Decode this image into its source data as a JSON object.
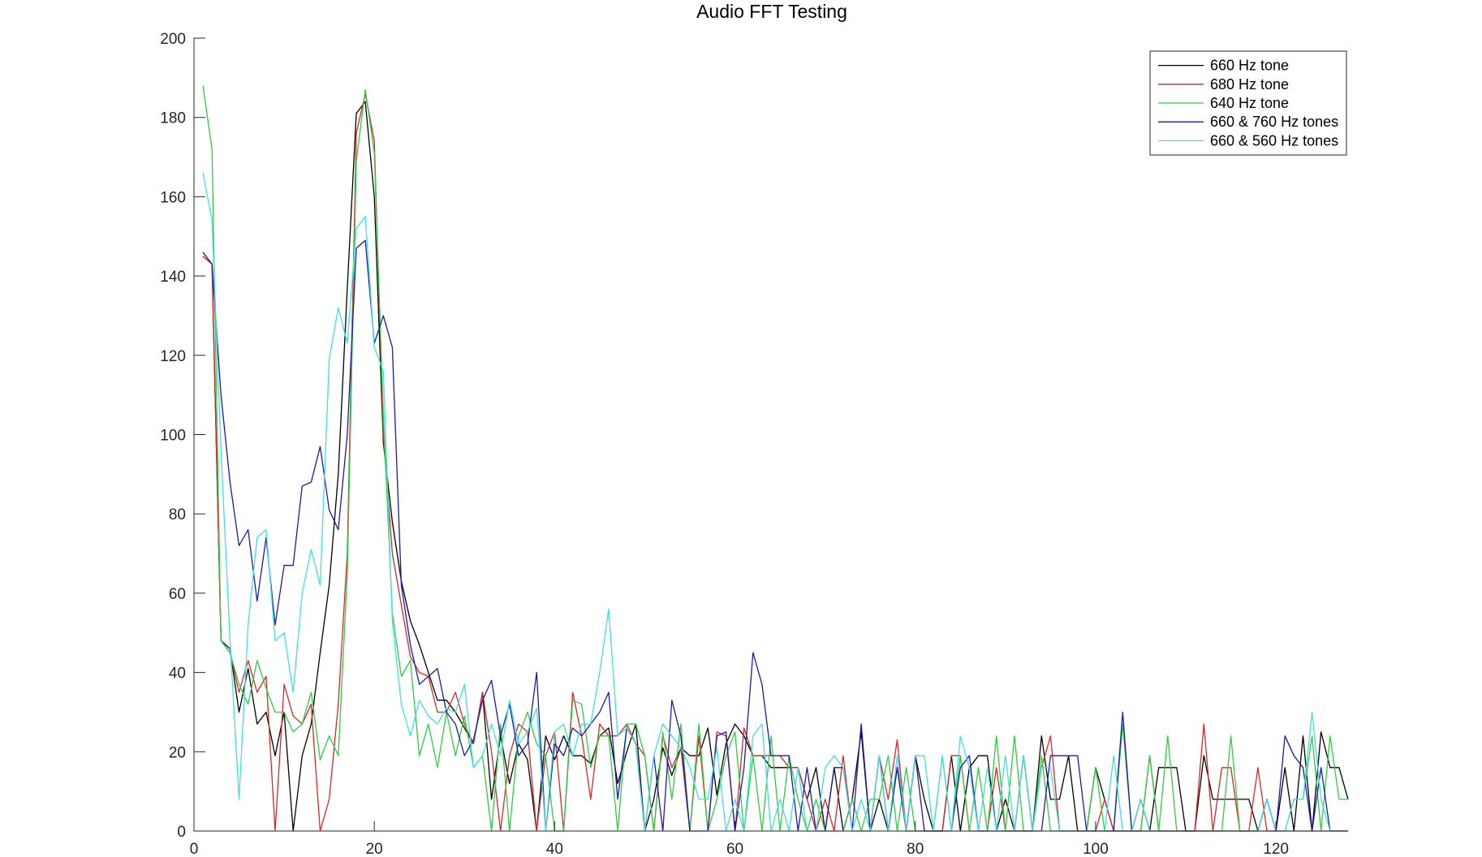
{
  "chart_data": {
    "type": "line",
    "title": "Audio FFT Testing",
    "xlabel": "",
    "ylabel": "",
    "xlim": [
      0,
      128
    ],
    "ylim": [
      0,
      200
    ],
    "xticks": [
      0,
      20,
      40,
      60,
      80,
      100,
      120
    ],
    "yticks": [
      0,
      20,
      40,
      60,
      80,
      100,
      120,
      140,
      160,
      180,
      200
    ],
    "grid": false,
    "legend_position": "top-right",
    "x": [
      1,
      2,
      3,
      4,
      5,
      6,
      7,
      8,
      9,
      10,
      11,
      12,
      13,
      14,
      15,
      16,
      17,
      18,
      19,
      20,
      21,
      22,
      23,
      24,
      25,
      26,
      27,
      28,
      29,
      30,
      31,
      32,
      33,
      34,
      35,
      36,
      37,
      38,
      39,
      40,
      41,
      42,
      43,
      44,
      45,
      46,
      47,
      48,
      49,
      50,
      51,
      52,
      53,
      54,
      55,
      56,
      57,
      58,
      59,
      60,
      61,
      62,
      63,
      64,
      65,
      66,
      67,
      68,
      69,
      70,
      71,
      72,
      73,
      74,
      75,
      76,
      77,
      78,
      79,
      80,
      81,
      82,
      83,
      84,
      85,
      86,
      87,
      88,
      89,
      90,
      91,
      92,
      93,
      94,
      95,
      96,
      97,
      98,
      99,
      100,
      101,
      102,
      103,
      104,
      105,
      106,
      107,
      108,
      109,
      110,
      111,
      112,
      113,
      114,
      115,
      116,
      117,
      118,
      119,
      120,
      121,
      122,
      123,
      124,
      125,
      126,
      127,
      128
    ],
    "series": [
      {
        "name": "660 Hz tone",
        "color": "#000000",
        "values": [
          145,
          143,
          48,
          46,
          30,
          41,
          27,
          30,
          19,
          30,
          0,
          19,
          27,
          45,
          62,
          90,
          137,
          181,
          184,
          160,
          98,
          78,
          63,
          53,
          47,
          40,
          33,
          33,
          30,
          26,
          22,
          35,
          8,
          24,
          12,
          22,
          18,
          0,
          24,
          18,
          24,
          19,
          19,
          17,
          24,
          26,
          12,
          20,
          27,
          0,
          8,
          21,
          14,
          21,
          19,
          19,
          26,
          9,
          22,
          27,
          24,
          19,
          19,
          16,
          16,
          16,
          16,
          8,
          16,
          0,
          16,
          0,
          8,
          25,
          0,
          8,
          0,
          16,
          0,
          19,
          8,
          0,
          0,
          19,
          0,
          16,
          19,
          19,
          0,
          8,
          0,
          19,
          0,
          24,
          8,
          8,
          19,
          0,
          0,
          16,
          8,
          0,
          0,
          0,
          8,
          0,
          16,
          16,
          16,
          0,
          0,
          19,
          8,
          8,
          8,
          8,
          8,
          0,
          8,
          0,
          16,
          0,
          24,
          0,
          25,
          16,
          16,
          8
        ]
      },
      {
        "name": "680 Hz tone",
        "color": "#d62728",
        "values": [
          145,
          143,
          48,
          45,
          35,
          43,
          35,
          39,
          0,
          37,
          29,
          27,
          32,
          0,
          8,
          32,
          70,
          176,
          186,
          174,
          100,
          70,
          57,
          44,
          40,
          39,
          30,
          30,
          35,
          27,
          22,
          35,
          20,
          0,
          19,
          27,
          25,
          0,
          19,
          25,
          0,
          35,
          24,
          8,
          27,
          24,
          24,
          27,
          22,
          19,
          0,
          24,
          16,
          21,
          0,
          24,
          0,
          25,
          24,
          0,
          26,
          19,
          19,
          19,
          19,
          16,
          16,
          8,
          0,
          8,
          0,
          19,
          0,
          0,
          0,
          19,
          8,
          23,
          0,
          0,
          0,
          0,
          0,
          19,
          19,
          0,
          0,
          0,
          16,
          0,
          0,
          0,
          0,
          16,
          24,
          0,
          0,
          0,
          0,
          0,
          8,
          0,
          0,
          0,
          0,
          19,
          0,
          0,
          0,
          0,
          0,
          27,
          0,
          16,
          16,
          0,
          0,
          16,
          0,
          0,
          0,
          0,
          0,
          0,
          0,
          0,
          0,
          0
        ]
      },
      {
        "name": "640 Hz tone",
        "color": "#2ecc40",
        "values": [
          188,
          172,
          48,
          45,
          37,
          32,
          43,
          36,
          30,
          30,
          25,
          27,
          35,
          18,
          24,
          19,
          65,
          169,
          187,
          171,
          105,
          55,
          39,
          43,
          19,
          27,
          16,
          30,
          19,
          29,
          16,
          19,
          0,
          27,
          0,
          24,
          30,
          22,
          19,
          0,
          0,
          33,
          32,
          16,
          24,
          24,
          0,
          27,
          27,
          19,
          0,
          25,
          8,
          27,
          0,
          27,
          0,
          8,
          19,
          25,
          0,
          19,
          0,
          24,
          0,
          19,
          8,
          0,
          8,
          0,
          0,
          0,
          8,
          0,
          8,
          8,
          19,
          0,
          16,
          0,
          0,
          0,
          19,
          0,
          19,
          0,
          16,
          0,
          24,
          0,
          24,
          0,
          0,
          19,
          0,
          0,
          0,
          0,
          0,
          16,
          0,
          0,
          27,
          0,
          0,
          19,
          0,
          24,
          0,
          0,
          0,
          0,
          0,
          0,
          24,
          0,
          0,
          0,
          0,
          0,
          0,
          8,
          8,
          24,
          0,
          24,
          8,
          8
        ]
      },
      {
        "name": "660 & 760 Hz tones",
        "color": "#1a1aa6",
        "values": [
          146,
          143,
          110,
          88,
          72,
          76,
          58,
          74,
          52,
          67,
          67,
          87,
          88,
          97,
          81,
          76,
          100,
          147,
          149,
          123,
          130,
          122,
          62,
          47,
          37,
          39,
          41,
          30,
          27,
          19,
          23,
          33,
          38,
          24,
          32,
          19,
          22,
          40,
          0,
          22,
          19,
          26,
          24,
          27,
          30,
          35,
          8,
          26,
          22,
          0,
          19,
          0,
          33,
          24,
          0,
          0,
          0,
          24,
          25,
          0,
          16,
          45,
          37,
          19,
          19,
          19,
          0,
          16,
          0,
          0,
          16,
          16,
          0,
          27,
          0,
          19,
          0,
          16,
          0,
          19,
          0,
          0,
          0,
          0,
          16,
          19,
          0,
          0,
          0,
          0,
          0,
          0,
          0,
          0,
          19,
          19,
          19,
          19,
          0,
          0,
          0,
          0,
          30,
          0,
          0,
          0,
          0,
          0,
          0,
          0,
          0,
          0,
          0,
          0,
          0,
          0,
          0,
          0,
          8,
          0,
          24,
          19,
          16,
          0,
          16,
          0,
          0,
          0
        ]
      },
      {
        "name": "660 & 560 Hz tones",
        "color": "#40e0e0",
        "values": [
          166,
          154,
          96,
          48,
          8,
          52,
          74,
          76,
          48,
          50,
          35,
          60,
          71,
          62,
          119,
          132,
          123,
          152,
          155,
          122,
          116,
          53,
          32,
          24,
          33,
          29,
          27,
          31,
          30,
          37,
          16,
          19,
          27,
          19,
          33,
          22,
          25,
          31,
          0,
          25,
          27,
          19,
          27,
          27,
          40,
          56,
          24,
          26,
          22,
          0,
          19,
          27,
          24,
          21,
          16,
          8,
          8,
          21,
          0,
          8,
          0,
          24,
          27,
          0,
          8,
          0,
          16,
          0,
          0,
          16,
          19,
          16,
          0,
          8,
          0,
          19,
          0,
          19,
          0,
          19,
          19,
          0,
          19,
          0,
          24,
          16,
          0,
          16,
          0,
          19,
          0,
          19,
          0,
          16,
          16,
          0,
          0,
          0,
          0,
          0,
          0,
          19,
          0,
          0,
          8,
          0,
          0,
          0,
          0,
          0,
          0,
          0,
          0,
          0,
          0,
          0,
          0,
          0,
          8,
          0,
          0,
          8,
          8,
          30,
          8,
          0,
          0,
          0
        ]
      }
    ]
  }
}
